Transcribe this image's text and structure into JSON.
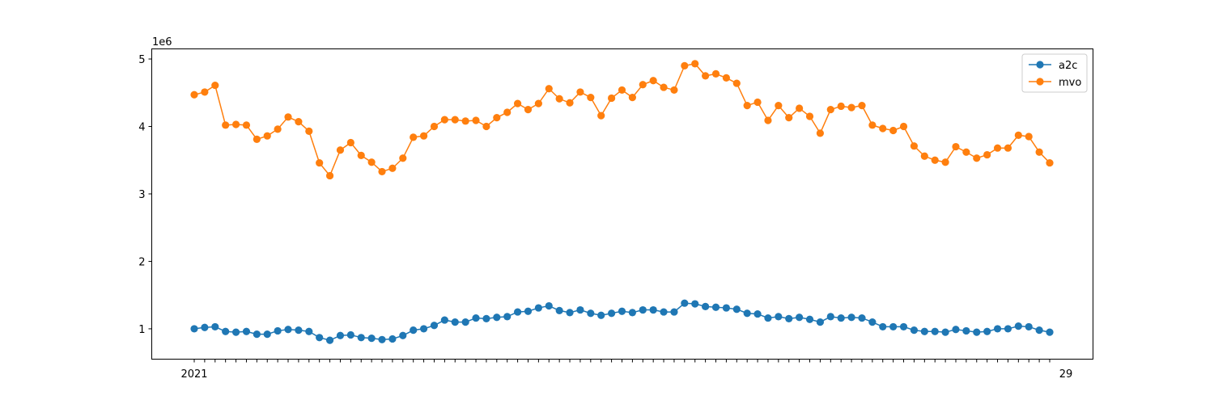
{
  "chart_data": {
    "type": "line",
    "title": "",
    "xlabel": "",
    "ylabel": "",
    "y_offset_label": "1e6",
    "ylim": [
      550000,
      5150000
    ],
    "yticks": [
      1000000,
      2000000,
      3000000,
      4000000,
      5000000
    ],
    "ytick_labels": [
      "1",
      "2",
      "3",
      "4",
      "5"
    ],
    "x_tick_labels_note": "82 date labels overlap along x axis; only first and last fragments readable",
    "x_tick_first": "2021",
    "x_tick_last": "29",
    "legend": {
      "placement": "top-right"
    },
    "grid": false,
    "series": [
      {
        "name": "a2c",
        "color": "#1f77b4",
        "values": [
          1000000,
          1020000,
          1030000,
          960000,
          950000,
          960000,
          920000,
          920000,
          970000,
          990000,
          980000,
          960000,
          870000,
          830000,
          900000,
          910000,
          870000,
          860000,
          840000,
          850000,
          900000,
          980000,
          1000000,
          1050000,
          1130000,
          1100000,
          1100000,
          1160000,
          1150000,
          1170000,
          1180000,
          1250000,
          1260000,
          1310000,
          1340000,
          1270000,
          1240000,
          1280000,
          1230000,
          1200000,
          1230000,
          1260000,
          1240000,
          1280000,
          1280000,
          1250000,
          1250000,
          1380000,
          1370000,
          1330000,
          1320000,
          1310000,
          1290000,
          1230000,
          1220000,
          1160000,
          1180000,
          1150000,
          1170000,
          1140000,
          1100000,
          1180000,
          1160000,
          1170000,
          1160000,
          1100000,
          1030000,
          1030000,
          1030000,
          980000,
          960000,
          960000,
          950000,
          990000,
          970000,
          950000,
          960000,
          1000000,
          1000000,
          1040000,
          1030000,
          980000,
          950000
        ]
      },
      {
        "name": "mvo",
        "color": "#ff7f0e",
        "values": [
          4470000,
          4510000,
          4610000,
          4020000,
          4030000,
          4020000,
          3810000,
          3860000,
          3960000,
          4140000,
          4070000,
          3930000,
          3460000,
          3270000,
          3650000,
          3760000,
          3570000,
          3470000,
          3330000,
          3380000,
          3530000,
          3840000,
          3860000,
          4000000,
          4100000,
          4100000,
          4080000,
          4090000,
          4000000,
          4130000,
          4210000,
          4340000,
          4250000,
          4340000,
          4560000,
          4410000,
          4350000,
          4510000,
          4430000,
          4160000,
          4420000,
          4540000,
          4430000,
          4620000,
          4680000,
          4580000,
          4540000,
          4900000,
          4930000,
          4750000,
          4780000,
          4720000,
          4640000,
          4310000,
          4360000,
          4090000,
          4310000,
          4130000,
          4270000,
          4150000,
          3900000,
          4250000,
          4300000,
          4280000,
          4310000,
          4020000,
          3970000,
          3940000,
          4000000,
          3710000,
          3560000,
          3500000,
          3470000,
          3700000,
          3620000,
          3530000,
          3580000,
          3680000,
          3680000,
          3870000,
          3850000,
          3620000,
          3460000
        ]
      }
    ]
  }
}
